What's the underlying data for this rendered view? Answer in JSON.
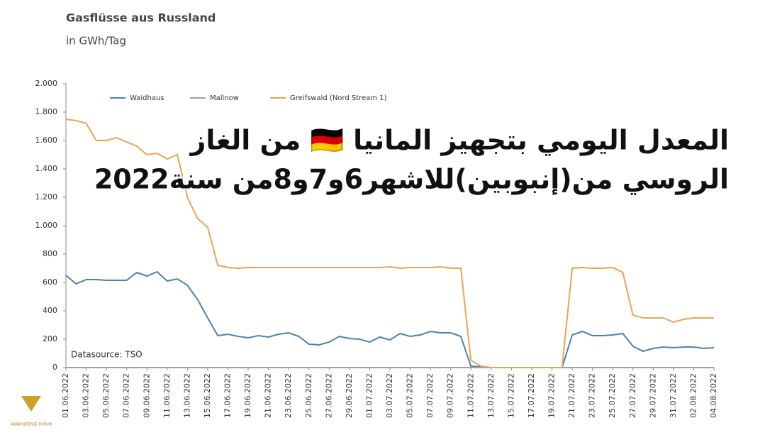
{
  "chart_data": {
    "type": "line",
    "title": "Gasflüsse aus Russland",
    "subtitle": "in GWh/Tag",
    "source": "Datasource: TSO",
    "annotation": [
      "المعدل اليومي بتجهيز المانيا 🇩🇪 من الغاز",
      "الروسي من(إنبوبين)للاشهر6و7و8من سنة2022"
    ],
    "watermark": "ARAB DEFENSE FORUM",
    "categories": [
      "01.06.2022",
      null,
      "03.06.2022",
      null,
      "05.06.2022",
      null,
      "07.06.2022",
      null,
      "09.06.2022",
      null,
      "11.06.2022",
      null,
      "13.06.2022",
      null,
      "15.06.2022",
      null,
      "17.06.2022",
      null,
      "19.06.2022",
      null,
      "21.06.2022",
      null,
      "23.06.2022",
      null,
      "25.06.2022",
      null,
      "27.06.2022",
      null,
      "29.06.2022",
      null,
      "01.07.2022",
      null,
      "03.07.2022",
      null,
      "05.07.2022",
      null,
      "07.07.2022",
      null,
      "09.07.2022",
      null,
      "11.07.2022",
      null,
      "13.07.2022",
      null,
      "15.07.2022",
      null,
      "17.07.2022",
      null,
      "19.07.2022",
      null,
      "21.07.2022",
      null,
      "23.07.2022",
      null,
      "25.07.2022",
      null,
      "27.07.2022",
      null,
      "29.07.2022",
      null,
      "31.07.2022",
      null,
      "02.08.2022",
      null,
      "04.08.2022"
    ],
    "series": [
      {
        "name": "Waidhaus",
        "color": "#4f81ad",
        "values": [
          650,
          590,
          620,
          620,
          615,
          615,
          615,
          670,
          645,
          675,
          610,
          625,
          580,
          480,
          350,
          225,
          235,
          220,
          210,
          225,
          215,
          235,
          245,
          220,
          165,
          160,
          180,
          220,
          205,
          200,
          180,
          215,
          195,
          240,
          220,
          230,
          255,
          245,
          245,
          220,
          10,
          5,
          0,
          0,
          0,
          0,
          0,
          0,
          0,
          0,
          230,
          255,
          225,
          225,
          230,
          240,
          150,
          115,
          135,
          145,
          140,
          145,
          145,
          135,
          140
        ]
      },
      {
        "name": "Mallnow",
        "color": "#a0a0a0",
        "values": [
          0,
          0,
          0,
          0,
          0,
          0,
          0,
          0,
          0,
          0,
          0,
          0,
          0,
          0,
          0,
          0,
          0,
          0,
          0,
          0,
          0,
          0,
          0,
          0,
          0,
          0,
          0,
          0,
          0,
          0,
          0,
          0,
          0,
          0,
          0,
          0,
          0,
          0,
          0,
          0,
          0,
          0,
          0,
          0,
          0,
          0,
          0,
          0,
          0,
          0,
          0,
          0,
          0,
          0,
          0,
          0,
          0,
          0,
          0,
          0,
          0,
          0,
          0,
          0,
          0
        ]
      },
      {
        "name": "Greifswald (Nord Stream 1)",
        "color": "#e8a455",
        "values": [
          1750,
          1740,
          1720,
          1600,
          1600,
          1620,
          1590,
          1560,
          1500,
          1510,
          1470,
          1500,
          1200,
          1050,
          990,
          720,
          705,
          700,
          705,
          705,
          705,
          705,
          705,
          705,
          705,
          705,
          705,
          705,
          705,
          705,
          705,
          705,
          710,
          700,
          705,
          705,
          705,
          710,
          700,
          700,
          50,
          10,
          0,
          0,
          0,
          0,
          0,
          0,
          0,
          0,
          700,
          705,
          700,
          700,
          705,
          670,
          370,
          350,
          350,
          350,
          320,
          340,
          350,
          350,
          350
        ]
      }
    ],
    "ylim": [
      0,
      2000
    ],
    "yticks": [
      0,
      200,
      400,
      600,
      800,
      {
        "value": 1000,
        "label": "1.000"
      },
      {
        "value": 1200,
        "label": "1.200"
      },
      {
        "value": 1400,
        "label": "1.400"
      },
      {
        "value": 1600,
        "label": "1.600"
      },
      {
        "value": 1800,
        "label": "1.800"
      },
      {
        "value": 2000,
        "label": "2.000"
      }
    ],
    "grid": false
  }
}
